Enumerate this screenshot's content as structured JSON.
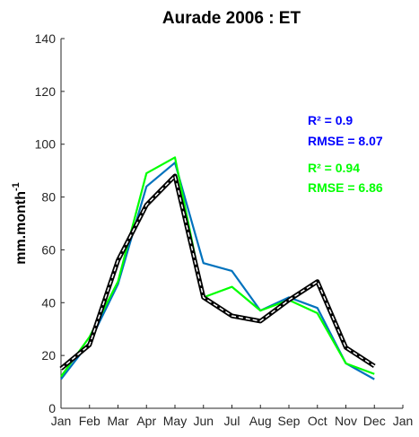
{
  "chart_data": {
    "type": "line",
    "title": "Aurade 2006  : ET",
    "ylabel": "mm.month",
    "ylabel_sup": "-1",
    "categories": [
      "Jan",
      "Feb",
      "Mar",
      "Apr",
      "May",
      "Jun",
      "Jul",
      "Aug",
      "Sep",
      "Oct",
      "Nov",
      "Dec",
      "Jan"
    ],
    "series": [
      {
        "color": "#0072BD",
        "values": [
          11,
          25,
          47,
          84,
          93,
          55,
          52,
          37,
          42,
          38,
          17,
          11,
          null
        ]
      },
      {
        "color": "#00FF00",
        "values": [
          12,
          27,
          48,
          89,
          95,
          42,
          46,
          37,
          41,
          36,
          17,
          13,
          null
        ]
      },
      {
        "color": "#000000",
        "dashed_center": true,
        "values": [
          15,
          24,
          56,
          77,
          88,
          42,
          35,
          33,
          41,
          48,
          23,
          16,
          null
        ]
      }
    ],
    "ylim": [
      0,
      140
    ],
    "yticks": [
      0,
      20,
      40,
      60,
      80,
      100,
      120,
      140
    ],
    "annotations": [
      {
        "text": "R² = 0.9",
        "color": "#0000FF"
      },
      {
        "text": "RMSE = 8.07",
        "color": "#0000FF"
      },
      {
        "text": "R² = 0.94",
        "color": "#00FF00"
      },
      {
        "text": "RMSE = 6.86",
        "color": "#00FF00"
      }
    ]
  }
}
